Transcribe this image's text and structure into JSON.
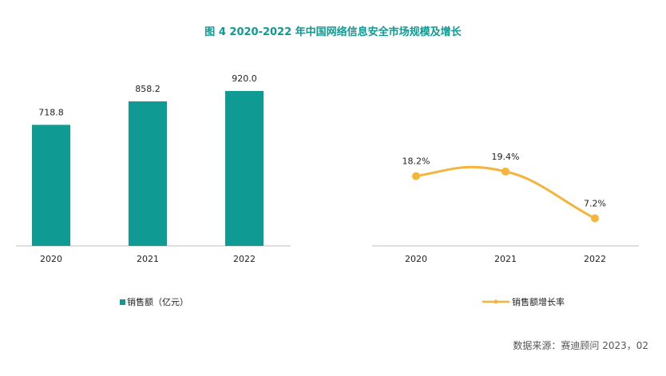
{
  "title": "图 4   2020-2022 年中国网络信息安全市场规模及增长",
  "source": "数据来源：赛迪顾问  2023，02",
  "colors": {
    "bar": "#0f9a93",
    "line": "#f5b53b",
    "title": "#0e9a92"
  },
  "chart_data": [
    {
      "type": "bar",
      "categories": [
        "2020",
        "2021",
        "2022"
      ],
      "series": [
        {
          "name": "销售额（亿元）",
          "values": [
            718.8,
            858.2,
            920.0
          ]
        }
      ],
      "value_labels": [
        "718.8",
        "858.2",
        "920.0"
      ],
      "ylim": [
        0,
        1100
      ],
      "grid": false,
      "legend": "bottom"
    },
    {
      "type": "line",
      "categories": [
        "2020",
        "2021",
        "2022"
      ],
      "series": [
        {
          "name": "销售额增长率",
          "values": [
            18.2,
            19.4,
            7.2
          ]
        }
      ],
      "value_labels": [
        "18.2%",
        "19.4%",
        "7.2%"
      ],
      "ylim": [
        0,
        50
      ],
      "grid": false,
      "legend": "bottom"
    }
  ]
}
